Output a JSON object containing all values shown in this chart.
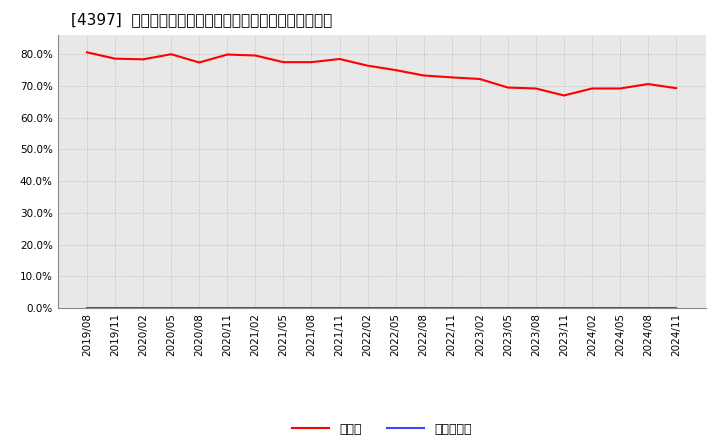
{
  "title": "[4397]  現顀金、有利子負債の総資産に対する比率の推移",
  "cash_dates": [
    "2019/08",
    "2019/11",
    "2020/02",
    "2020/05",
    "2020/08",
    "2020/11",
    "2021/02",
    "2021/05",
    "2021/08",
    "2021/11",
    "2022/02",
    "2022/05",
    "2022/08",
    "2022/11",
    "2023/02",
    "2023/05",
    "2023/08",
    "2023/11",
    "2024/02",
    "2024/05",
    "2024/08",
    "2024/11"
  ],
  "cash_values": [
    0.806,
    0.786,
    0.784,
    0.8,
    0.774,
    0.799,
    0.796,
    0.775,
    0.775,
    0.785,
    0.764,
    0.75,
    0.733,
    0.727,
    0.722,
    0.695,
    0.692,
    0.67,
    0.692,
    0.692,
    0.706,
    0.693
  ],
  "debt_values": [
    0.0,
    0.0,
    0.0,
    0.0,
    0.0,
    0.0,
    0.0,
    0.0,
    0.0,
    0.0,
    0.0,
    0.0,
    0.0,
    0.0,
    0.0,
    0.0,
    0.0,
    0.0,
    0.0,
    0.0,
    0.0,
    0.0
  ],
  "cash_color": "#ff0000",
  "debt_color": "#4444ff",
  "grid_color": "#bbbbbb",
  "background_color": "#ffffff",
  "plot_bg_color": "#e8e8e8",
  "ylim": [
    0.0,
    0.86
  ],
  "yticks": [
    0.0,
    0.1,
    0.2,
    0.3,
    0.4,
    0.5,
    0.6,
    0.7,
    0.8
  ],
  "legend_cash": "現顀金",
  "legend_debt": "有利子負債",
  "title_fontsize": 11,
  "tick_fontsize": 7.5,
  "legend_fontsize": 9
}
